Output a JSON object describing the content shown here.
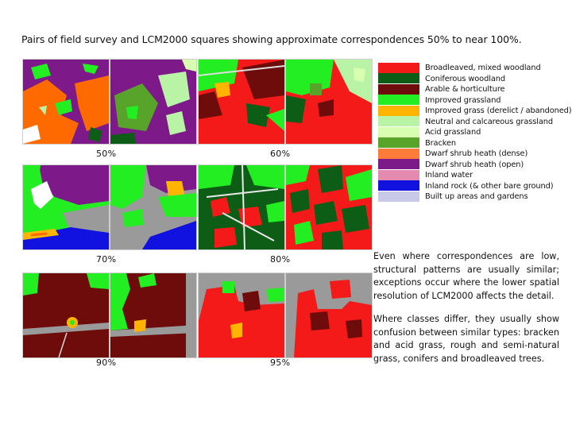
{
  "title": "Pairs of field survey and LCM2000 squares showing approximate correspondences  50% to near 100%.",
  "percent_labels": [
    "50%",
    "60%",
    "70%",
    "80%",
    "90%",
    "95%"
  ],
  "legend": [
    {
      "label": "Broadleaved, mixed woodland",
      "color": "#f41a1a"
    },
    {
      "label": "Coniferous woodland",
      "color": "#0d5d17"
    },
    {
      "label": "Arable & horticulture",
      "color": "#6e0b0b"
    },
    {
      "label": "Improved grassland",
      "color": "#22ee22"
    },
    {
      "label": "Improved grass (derelict / abandoned)",
      "color": "#ffb400"
    },
    {
      "label": "Neutral and calcareous grassland",
      "color": "#b8f3a6"
    },
    {
      "label": "Acid grassland",
      "color": "#d8ffb0"
    },
    {
      "label": "Bracken",
      "color": "#58a32a"
    },
    {
      "label": "Dwarf shrub heath (dense)",
      "color": "#ff7b3a"
    },
    {
      "label": "Dwarf shrub heath (open)",
      "color": "#7e198a"
    },
    {
      "label": "Inland water",
      "color": "#e48ab0"
    },
    {
      "label": "Inland rock (& other bare ground)",
      "color": "#1212e0"
    },
    {
      "label": "Built up areas and gardens",
      "color": "#c8c9e6"
    }
  ],
  "paragraphs": [
    "Even where correspondences are low, structural patterns are usually similar; exceptions occur where the lower spatial resolution of LCM2000 affects the detail.",
    "Where classes differ, they usually show confusion between similar types: bracken and acid grass, rough and semi-natural grass, conifers and broadleaved trees."
  ]
}
